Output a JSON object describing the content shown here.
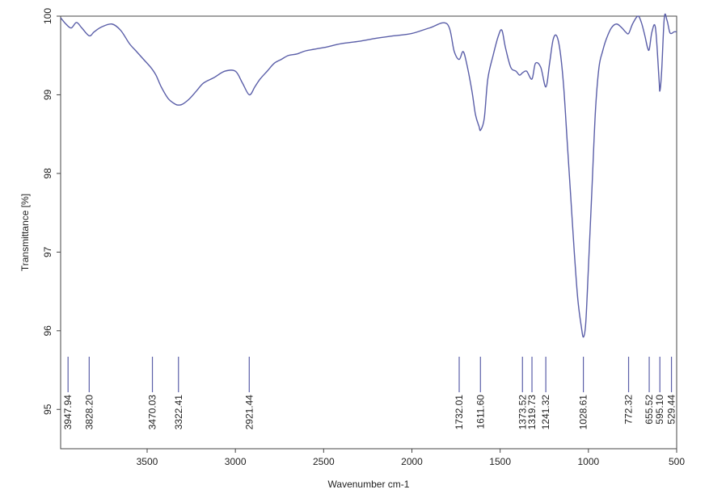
{
  "chart_data": {
    "type": "line",
    "title": "",
    "xlabel": "Wavenumber cm-1",
    "ylabel": "Transmittance [%]",
    "xlim": [
      3990,
      500
    ],
    "ylim": [
      94.5,
      100
    ],
    "x_reversed": true,
    "grid": false,
    "x_ticks": [
      "3500",
      "3000",
      "2500",
      "2000",
      "1500",
      "1000",
      "500"
    ],
    "y_ticks": [
      "95",
      "96",
      "97",
      "98",
      "99",
      "100"
    ],
    "line_color": "#5a5ea8",
    "series": [
      {
        "name": "",
        "x": [
          3990,
          3960,
          3930,
          3900,
          3870,
          3828,
          3800,
          3760,
          3700,
          3650,
          3600,
          3560,
          3520,
          3480,
          3450,
          3420,
          3380,
          3340,
          3322,
          3300,
          3260,
          3220,
          3180,
          3120,
          3060,
          3000,
          2960,
          2921,
          2890,
          2860,
          2820,
          2780,
          2740,
          2700,
          2650,
          2600,
          2500,
          2400,
          2300,
          2200,
          2100,
          2000,
          1900,
          1800,
          1760,
          1732,
          1710,
          1690,
          1660,
          1640,
          1620,
          1611,
          1590,
          1570,
          1540,
          1510,
          1490,
          1470,
          1440,
          1410,
          1390,
          1373,
          1350,
          1320,
          1300,
          1270,
          1241,
          1220,
          1200,
          1180,
          1160,
          1140,
          1120,
          1100,
          1080,
          1060,
          1040,
          1028,
          1015,
          1000,
          980,
          960,
          940,
          920,
          900,
          870,
          840,
          810,
          790,
          772,
          750,
          720,
          700,
          680,
          665,
          655,
          640,
          620,
          600,
          595,
          585,
          570,
          555,
          540,
          529,
          515,
          500
        ],
        "y": [
          99.98,
          99.9,
          99.85,
          99.92,
          99.85,
          99.75,
          99.8,
          99.86,
          99.9,
          99.82,
          99.65,
          99.55,
          99.45,
          99.35,
          99.25,
          99.1,
          98.95,
          98.88,
          98.87,
          98.88,
          98.95,
          99.05,
          99.15,
          99.22,
          99.3,
          99.3,
          99.15,
          99.0,
          99.1,
          99.2,
          99.3,
          99.4,
          99.45,
          99.5,
          99.52,
          99.56,
          99.6,
          99.65,
          99.68,
          99.72,
          99.75,
          99.78,
          99.85,
          99.9,
          99.55,
          99.45,
          99.55,
          99.4,
          99.05,
          98.75,
          98.6,
          98.55,
          98.7,
          99.2,
          99.5,
          99.75,
          99.82,
          99.6,
          99.35,
          99.3,
          99.25,
          99.28,
          99.3,
          99.2,
          99.4,
          99.35,
          99.1,
          99.4,
          99.7,
          99.75,
          99.55,
          99.1,
          98.4,
          97.7,
          97.0,
          96.4,
          96.05,
          95.92,
          96.1,
          96.8,
          97.8,
          98.8,
          99.35,
          99.55,
          99.7,
          99.85,
          99.9,
          99.85,
          99.8,
          99.78,
          99.9,
          100.0,
          99.92,
          99.75,
          99.6,
          99.58,
          99.8,
          99.85,
          99.2,
          99.05,
          99.3,
          99.98,
          99.95,
          99.8,
          99.78,
          99.8,
          99.8
        ]
      }
    ],
    "peaks": [
      {
        "x": 3947.94,
        "label": "3947.94"
      },
      {
        "x": 3828.2,
        "label": "3828.20"
      },
      {
        "x": 3470.03,
        "label": "3470.03"
      },
      {
        "x": 3322.41,
        "label": "3322.41"
      },
      {
        "x": 2921.44,
        "label": "2921.44"
      },
      {
        "x": 1732.01,
        "label": "1732.01"
      },
      {
        "x": 1611.6,
        "label": "1611.60"
      },
      {
        "x": 1373.52,
        "label": "1373.52"
      },
      {
        "x": 1319.73,
        "label": "1319.73"
      },
      {
        "x": 1241.32,
        "label": "1241.32"
      },
      {
        "x": 1028.61,
        "label": "1028.61"
      },
      {
        "x": 772.32,
        "label": "772.32"
      },
      {
        "x": 655.52,
        "label": "655.52"
      },
      {
        "x": 595.1,
        "label": "595.10"
      },
      {
        "x": 529.44,
        "label": "529.44"
      }
    ]
  }
}
